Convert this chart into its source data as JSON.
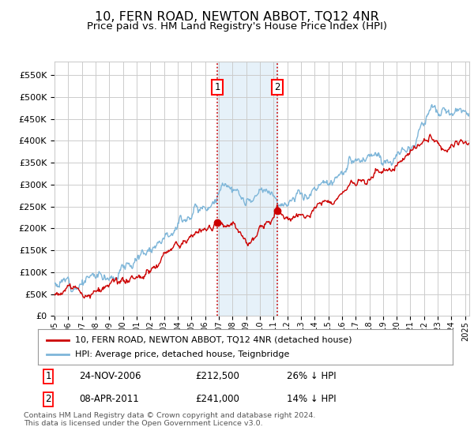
{
  "title": "10, FERN ROAD, NEWTON ABBOT, TQ12 4NR",
  "subtitle": "Price paid vs. HM Land Registry's House Price Index (HPI)",
  "title_fontsize": 11.5,
  "subtitle_fontsize": 9.5,
  "ylabel_ticks": [
    "£0",
    "£50K",
    "£100K",
    "£150K",
    "£200K",
    "£250K",
    "£300K",
    "£350K",
    "£400K",
    "£450K",
    "£500K",
    "£550K"
  ],
  "ytick_values": [
    0,
    50000,
    100000,
    150000,
    200000,
    250000,
    300000,
    350000,
    400000,
    450000,
    500000,
    550000
  ],
  "ylim": [
    0,
    580000
  ],
  "xlim_start": 1995.0,
  "xlim_end": 2025.3,
  "xtick_years": [
    1995,
    1996,
    1997,
    1998,
    1999,
    2000,
    2001,
    2002,
    2003,
    2004,
    2005,
    2006,
    2007,
    2008,
    2009,
    2010,
    2011,
    2012,
    2013,
    2014,
    2015,
    2016,
    2017,
    2018,
    2019,
    2020,
    2021,
    2022,
    2023,
    2024,
    2025
  ],
  "hpi_color": "#7eb6d9",
  "price_color": "#cc0000",
  "grid_color": "#cccccc",
  "sale1_x": 2006.9,
  "sale1_y": 212500,
  "sale1_label": "1",
  "sale1_date": "24-NOV-2006",
  "sale1_price": "£212,500",
  "sale1_hpi": "26% ↓ HPI",
  "sale2_x": 2011.27,
  "sale2_y": 241000,
  "sale2_label": "2",
  "sale2_date": "08-APR-2011",
  "sale2_price": "£241,000",
  "sale2_hpi": "14% ↓ HPI",
  "shade_color": "#d6e8f5",
  "shade_alpha": 0.6,
  "vline_color": "#cc0000",
  "legend_line1": "10, FERN ROAD, NEWTON ABBOT, TQ12 4NR (detached house)",
  "legend_line2": "HPI: Average price, detached house, Teignbridge",
  "footer": "Contains HM Land Registry data © Crown copyright and database right 2024.\nThis data is licensed under the Open Government Licence v3.0.",
  "background_color": "#ffffff"
}
